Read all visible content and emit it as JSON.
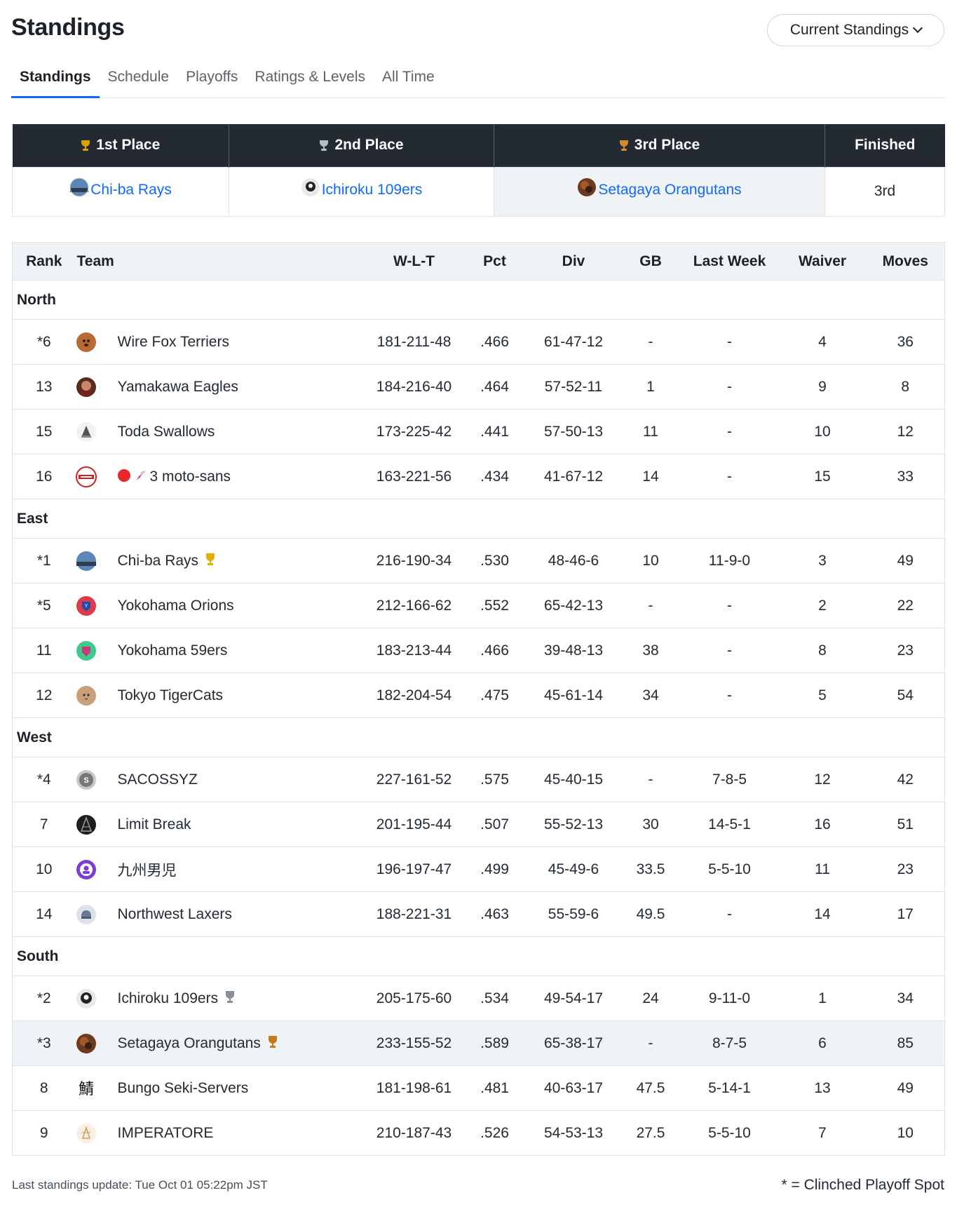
{
  "page_title": "Standings",
  "standings_select": {
    "label": "Current Standings",
    "icon": "chevron-down-icon"
  },
  "tabs": [
    {
      "label": "Standings",
      "active": true
    },
    {
      "label": "Schedule",
      "active": false
    },
    {
      "label": "Playoffs",
      "active": false
    },
    {
      "label": "Ratings & Levels",
      "active": false
    },
    {
      "label": "All Time",
      "active": false
    }
  ],
  "podium": {
    "headers": [
      "1st Place",
      "2nd Place",
      "3rd Place",
      "Finished"
    ],
    "first": "Chi-ba Rays",
    "second": "Ichiroku 109ers",
    "third": "Setagaya Orangutans",
    "finished": "3rd",
    "trophy_colors": {
      "gold": "#d9a400",
      "silver": "#8a8f94",
      "bronze": "#c77a1a"
    }
  },
  "table": {
    "headers": {
      "rank": "Rank",
      "team": "Team",
      "wlt": "W-L-T",
      "pct": "Pct",
      "div": "Div",
      "gb": "GB",
      "last_week": "Last Week",
      "waiver": "Waiver",
      "moves": "Moves"
    },
    "north": {
      "name": "North",
      "rows": [
        {
          "rank": "*6",
          "team": "Wire Fox Terriers",
          "wlt": "181-211-48",
          "pct": ".466",
          "div": "61-47-12",
          "gb": "-",
          "lw": "-",
          "waiver": "4",
          "moves": "36"
        },
        {
          "rank": "13",
          "team": "Yamakawa Eagles",
          "wlt": "184-216-40",
          "pct": ".464",
          "div": "57-52-11",
          "gb": "1",
          "lw": "-",
          "waiver": "9",
          "moves": "8"
        },
        {
          "rank": "15",
          "team": "Toda Swallows",
          "wlt": "173-225-42",
          "pct": ".441",
          "div": "57-50-13",
          "gb": "11",
          "lw": "-",
          "waiver": "10",
          "moves": "12"
        },
        {
          "rank": "16",
          "team": "3 moto-sans",
          "wlt": "163-221-56",
          "pct": ".434",
          "div": "41-67-12",
          "gb": "14",
          "lw": "-",
          "waiver": "15",
          "moves": "33"
        }
      ]
    },
    "east": {
      "name": "East",
      "rows": [
        {
          "rank": "*1",
          "team": "Chi-ba Rays",
          "wlt": "216-190-34",
          "pct": ".530",
          "div": "48-46-6",
          "gb": "10",
          "lw": "11-9-0",
          "waiver": "3",
          "moves": "49"
        },
        {
          "rank": "*5",
          "team": "Yokohama Orions",
          "wlt": "212-166-62",
          "pct": ".552",
          "div": "65-42-13",
          "gb": "-",
          "lw": "-",
          "waiver": "2",
          "moves": "22"
        },
        {
          "rank": "11",
          "team": "Yokohama 59ers",
          "wlt": "183-213-44",
          "pct": ".466",
          "div": "39-48-13",
          "gb": "38",
          "lw": "-",
          "waiver": "8",
          "moves": "23"
        },
        {
          "rank": "12",
          "team": "Tokyo TigerCats",
          "wlt": "182-204-54",
          "pct": ".475",
          "div": "45-61-14",
          "gb": "34",
          "lw": "-",
          "waiver": "5",
          "moves": "54"
        }
      ]
    },
    "west": {
      "name": "West",
      "rows": [
        {
          "rank": "*4",
          "team": "SACOSSYZ",
          "wlt": "227-161-52",
          "pct": ".575",
          "div": "45-40-15",
          "gb": "-",
          "lw": "7-8-5",
          "waiver": "12",
          "moves": "42"
        },
        {
          "rank": "7",
          "team": "Limit Break",
          "wlt": "201-195-44",
          "pct": ".507",
          "div": "55-52-13",
          "gb": "30",
          "lw": "14-5-1",
          "waiver": "16",
          "moves": "51"
        },
        {
          "rank": "10",
          "team": "九州男児",
          "wlt": "196-197-47",
          "pct": ".499",
          "div": "45-49-6",
          "gb": "33.5",
          "lw": "5-5-10",
          "waiver": "11",
          "moves": "23"
        },
        {
          "rank": "14",
          "team": "Northwest Laxers",
          "wlt": "188-221-31",
          "pct": ".463",
          "div": "55-59-6",
          "gb": "49.5",
          "lw": "-",
          "waiver": "14",
          "moves": "17"
        }
      ]
    },
    "south": {
      "name": "South",
      "rows": [
        {
          "rank": "*2",
          "team": "Ichiroku 109ers",
          "wlt": "205-175-60",
          "pct": ".534",
          "div": "49-54-17",
          "gb": "24",
          "lw": "9-11-0",
          "waiver": "1",
          "moves": "34"
        },
        {
          "rank": "*3",
          "team": "Setagaya Orangutans",
          "wlt": "233-155-52",
          "pct": ".589",
          "div": "65-38-17",
          "gb": "-",
          "lw": "8-7-5",
          "waiver": "6",
          "moves": "85"
        },
        {
          "rank": "8",
          "team": "Bungo Seki-Servers",
          "wlt": "181-198-61",
          "pct": ".481",
          "div": "40-63-17",
          "gb": "47.5",
          "lw": "5-14-1",
          "waiver": "13",
          "moves": "49"
        },
        {
          "rank": "9",
          "team": "IMPERATORE",
          "wlt": "210-187-43",
          "pct": ".526",
          "div": "54-53-13",
          "gb": "27.5",
          "lw": "5-5-10",
          "waiver": "7",
          "moves": "10"
        }
      ]
    }
  },
  "footer": {
    "last_update": "Last standings update: Tue Oct 01 05:22pm JST",
    "legend": "* = Clinched Playoff Spot"
  }
}
